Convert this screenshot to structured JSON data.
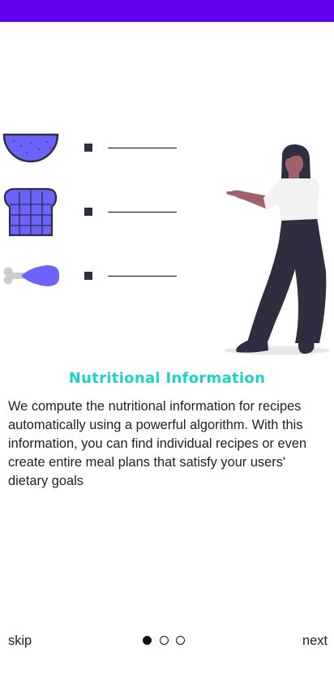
{
  "colors": {
    "status_bar": "#6200ee",
    "title": "#1ed3c3",
    "food_fill": "#6c63ff",
    "skin": "#a0616a",
    "hair": "#2f2e41",
    "shirt": "#f2f2f2",
    "pants": "#2f2e41",
    "bone": "#cccccc"
  },
  "illustration": {
    "icons": [
      "watermelon-icon",
      "bread-icon",
      "drumstick-icon"
    ]
  },
  "onboarding": {
    "title": "Nutritional Information",
    "description": "We compute the nutritional information for recipes automatically using a powerful algorithm. With this information, you can find individual recipes or even create entire meal plans that satisfy your users' dietary goals"
  },
  "navigation": {
    "skip_label": "skip",
    "next_label": "next",
    "page_count": 3,
    "current_page": 1
  }
}
